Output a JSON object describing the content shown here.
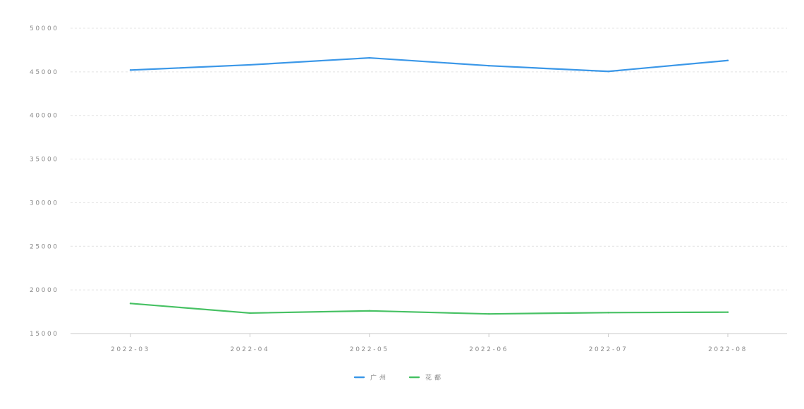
{
  "chart_data": {
    "type": "line",
    "title": "",
    "xlabel": "",
    "ylabel": "",
    "categories": [
      "2022-03",
      "2022-04",
      "2022-05",
      "2022-06",
      "2022-07",
      "2022-08"
    ],
    "y_ticks": [
      15000,
      20000,
      25000,
      30000,
      35000,
      40000,
      45000,
      50000
    ],
    "ylim": [
      15000,
      50000
    ],
    "grid": true,
    "legend_position": "bottom-center",
    "series": [
      {
        "name": "广州",
        "color": "#3a97e8",
        "values": [
          45200,
          45800,
          46600,
          45700,
          45050,
          46300
        ]
      },
      {
        "name": "花都",
        "color": "#46c163",
        "values": [
          18450,
          17350,
          17600,
          17250,
          17400,
          17450
        ]
      }
    ]
  }
}
